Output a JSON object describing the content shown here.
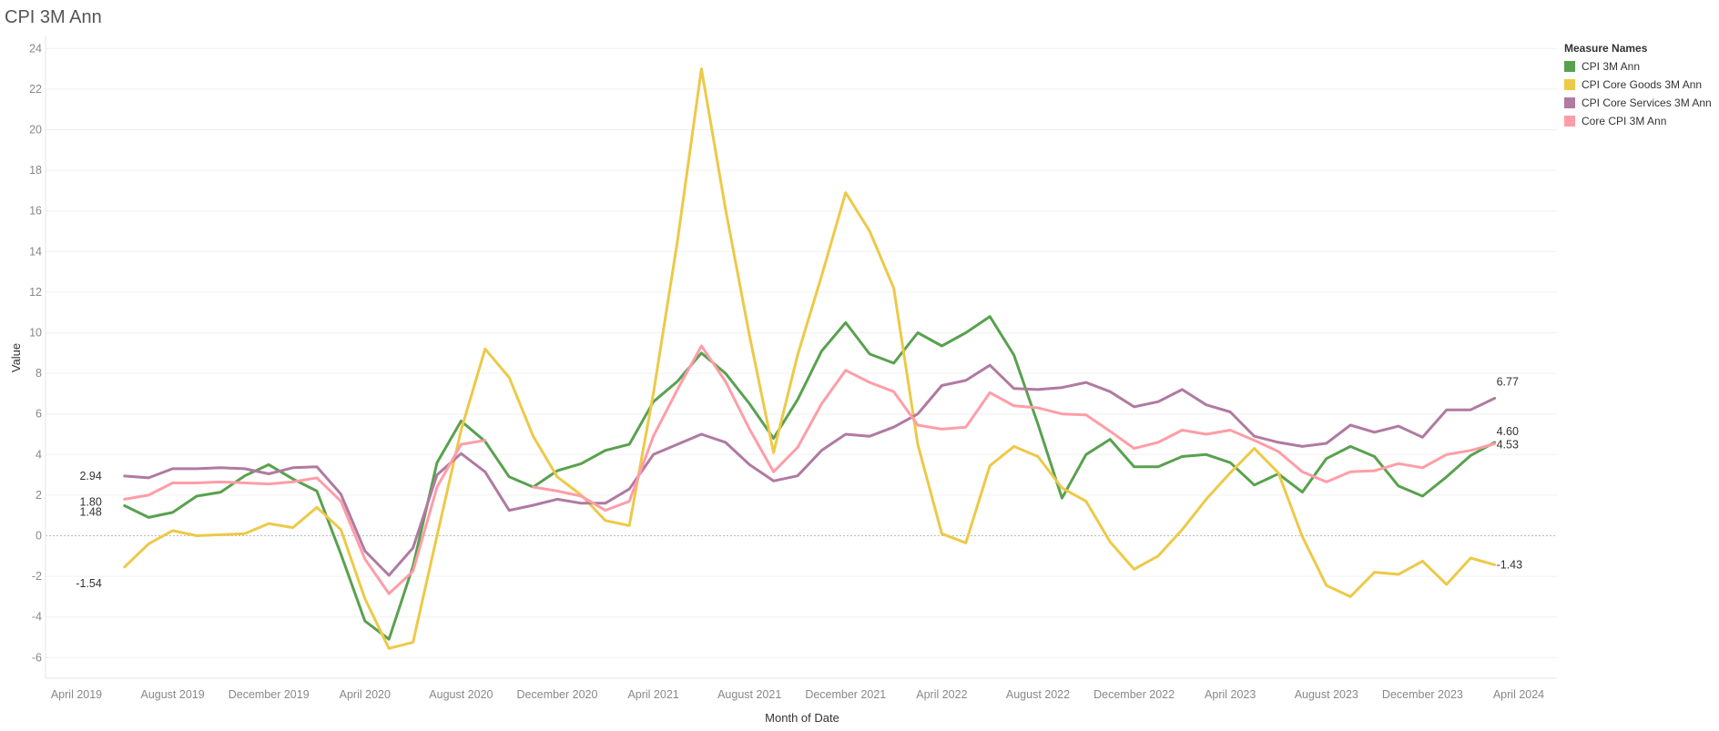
{
  "title": "CPI 3M Ann",
  "legend": {
    "title": "Measure Names",
    "items": [
      {
        "label": "CPI 3M Ann",
        "color": "#59a14f"
      },
      {
        "label": "CPI Core Goods 3M Ann",
        "color": "#edc948"
      },
      {
        "label": "CPI Core Services 3M Ann",
        "color": "#b07aa1"
      },
      {
        "label": "Core CPI 3M Ann",
        "color": "#ff9da7"
      }
    ]
  },
  "chart_data": {
    "type": "line",
    "title": "CPI 3M Ann",
    "xlabel": "Month of Date",
    "ylabel": "Value",
    "ylim": [
      -7,
      24.5
    ],
    "yticks": [
      -6,
      -4,
      -2,
      0,
      2,
      4,
      6,
      8,
      10,
      12,
      14,
      16,
      18,
      20,
      22,
      24
    ],
    "xticks": [
      "April 2019",
      "August 2019",
      "December 2019",
      "April 2020",
      "August 2020",
      "December 2020",
      "April 2021",
      "August 2021",
      "December 2021",
      "April 2022",
      "August 2022",
      "December 2022",
      "April 2023",
      "August 2023",
      "December 2023",
      "April 2024"
    ],
    "grid": "horizontal",
    "legend_position": "top-right",
    "x": [
      "2019-06",
      "2019-07",
      "2019-08",
      "2019-09",
      "2019-10",
      "2019-11",
      "2019-12",
      "2020-01",
      "2020-02",
      "2020-03",
      "2020-04",
      "2020-05",
      "2020-06",
      "2020-07",
      "2020-08",
      "2020-09",
      "2020-10",
      "2020-11",
      "2020-12",
      "2021-01",
      "2021-02",
      "2021-03",
      "2021-04",
      "2021-05",
      "2021-06",
      "2021-07",
      "2021-08",
      "2021-09",
      "2021-10",
      "2021-11",
      "2021-12",
      "2022-01",
      "2022-02",
      "2022-03",
      "2022-04",
      "2022-05",
      "2022-06",
      "2022-07",
      "2022-08",
      "2022-09",
      "2022-10",
      "2022-11",
      "2022-12",
      "2023-01",
      "2023-02",
      "2023-03",
      "2023-04",
      "2023-05",
      "2023-06",
      "2023-07",
      "2023-08",
      "2023-09",
      "2023-10",
      "2023-11",
      "2023-12",
      "2024-01",
      "2024-02",
      "2024-03"
    ],
    "series": [
      {
        "name": "CPI 3M Ann",
        "color": "#59a14f",
        "values": [
          1.48,
          0.9,
          1.15,
          1.95,
          2.15,
          2.95,
          3.5,
          2.8,
          2.2,
          -0.9,
          -4.2,
          -5.1,
          -1.5,
          3.6,
          5.65,
          4.65,
          2.9,
          2.4,
          3.2,
          3.55,
          4.2,
          4.5,
          6.6,
          7.6,
          9.0,
          8.0,
          6.5,
          4.8,
          6.7,
          9.1,
          10.5,
          8.95,
          8.5,
          10.0,
          9.35,
          10.0,
          10.8,
          8.9,
          5.5,
          1.85,
          4.0,
          4.75,
          3.4,
          3.4,
          3.9,
          4.0,
          3.6,
          2.5,
          3.05,
          2.15,
          3.8,
          4.4,
          3.9,
          2.45,
          1.95,
          2.9,
          3.95,
          4.6
        ]
      },
      {
        "name": "CPI Core Goods 3M Ann",
        "color": "#edc948",
        "values": [
          -1.54,
          -0.4,
          0.25,
          0.0,
          0.05,
          0.1,
          0.6,
          0.4,
          1.4,
          0.3,
          -3.1,
          -5.55,
          -5.25,
          0.0,
          5.2,
          9.2,
          7.8,
          4.9,
          2.9,
          2.0,
          0.75,
          0.5,
          7.0,
          14.5,
          23.0,
          16.1,
          9.85,
          4.1,
          8.9,
          12.8,
          16.9,
          15.0,
          12.2,
          4.5,
          0.1,
          -0.35,
          3.45,
          4.4,
          3.9,
          2.35,
          1.7,
          -0.3,
          -1.65,
          -1.0,
          0.3,
          1.8,
          3.1,
          4.3,
          3.1,
          -0.05,
          -2.45,
          -3.0,
          -1.8,
          -1.9,
          -1.25,
          -2.4,
          -1.1,
          -1.43
        ]
      },
      {
        "name": "CPI Core Services 3M Ann",
        "color": "#b07aa1",
        "values": [
          2.94,
          2.85,
          3.3,
          3.3,
          3.35,
          3.3,
          3.05,
          3.35,
          3.4,
          2.05,
          -0.75,
          -1.95,
          -0.6,
          3.0,
          4.05,
          3.15,
          1.25,
          1.5,
          1.8,
          1.6,
          1.6,
          2.3,
          4.0,
          4.5,
          5.0,
          4.6,
          3.5,
          2.7,
          2.95,
          4.2,
          5.0,
          4.9,
          5.35,
          6.0,
          7.4,
          7.65,
          8.4,
          7.25,
          7.2,
          7.3,
          7.55,
          7.1,
          6.35,
          6.6,
          7.2,
          6.45,
          6.1,
          4.9,
          4.6,
          4.4,
          4.55,
          5.45,
          5.1,
          5.4,
          4.85,
          6.2,
          6.2,
          6.77
        ]
      },
      {
        "name": "Core CPI 3M Ann",
        "color": "#ff9da7",
        "values": [
          1.8,
          2.0,
          2.6,
          2.6,
          2.65,
          2.6,
          2.55,
          2.65,
          2.85,
          1.7,
          -1.15,
          -2.85,
          -1.75,
          2.4,
          4.5,
          4.7,
          null,
          2.4,
          2.2,
          1.95,
          1.25,
          1.7,
          4.9,
          7.2,
          9.35,
          7.6,
          5.25,
          3.15,
          4.35,
          6.5,
          8.15,
          7.55,
          7.1,
          5.45,
          5.25,
          5.35,
          7.05,
          6.4,
          6.3,
          6.0,
          5.95,
          5.15,
          4.3,
          4.6,
          5.2,
          5.0,
          5.2,
          4.7,
          4.15,
          3.15,
          2.65,
          3.15,
          3.2,
          3.55,
          3.35,
          4.0,
          4.2,
          4.53
        ]
      }
    ],
    "end_labels": [
      {
        "series": "CPI 3M Ann",
        "start": "1.48",
        "end": "4.60"
      },
      {
        "series": "CPI Core Goods 3M Ann",
        "start": "-1.54",
        "end": "-1.43"
      },
      {
        "series": "CPI Core Services 3M Ann",
        "start": "2.94",
        "end": "6.77"
      },
      {
        "series": "Core CPI 3M Ann",
        "start": "1.80",
        "end": "4.53"
      }
    ]
  }
}
